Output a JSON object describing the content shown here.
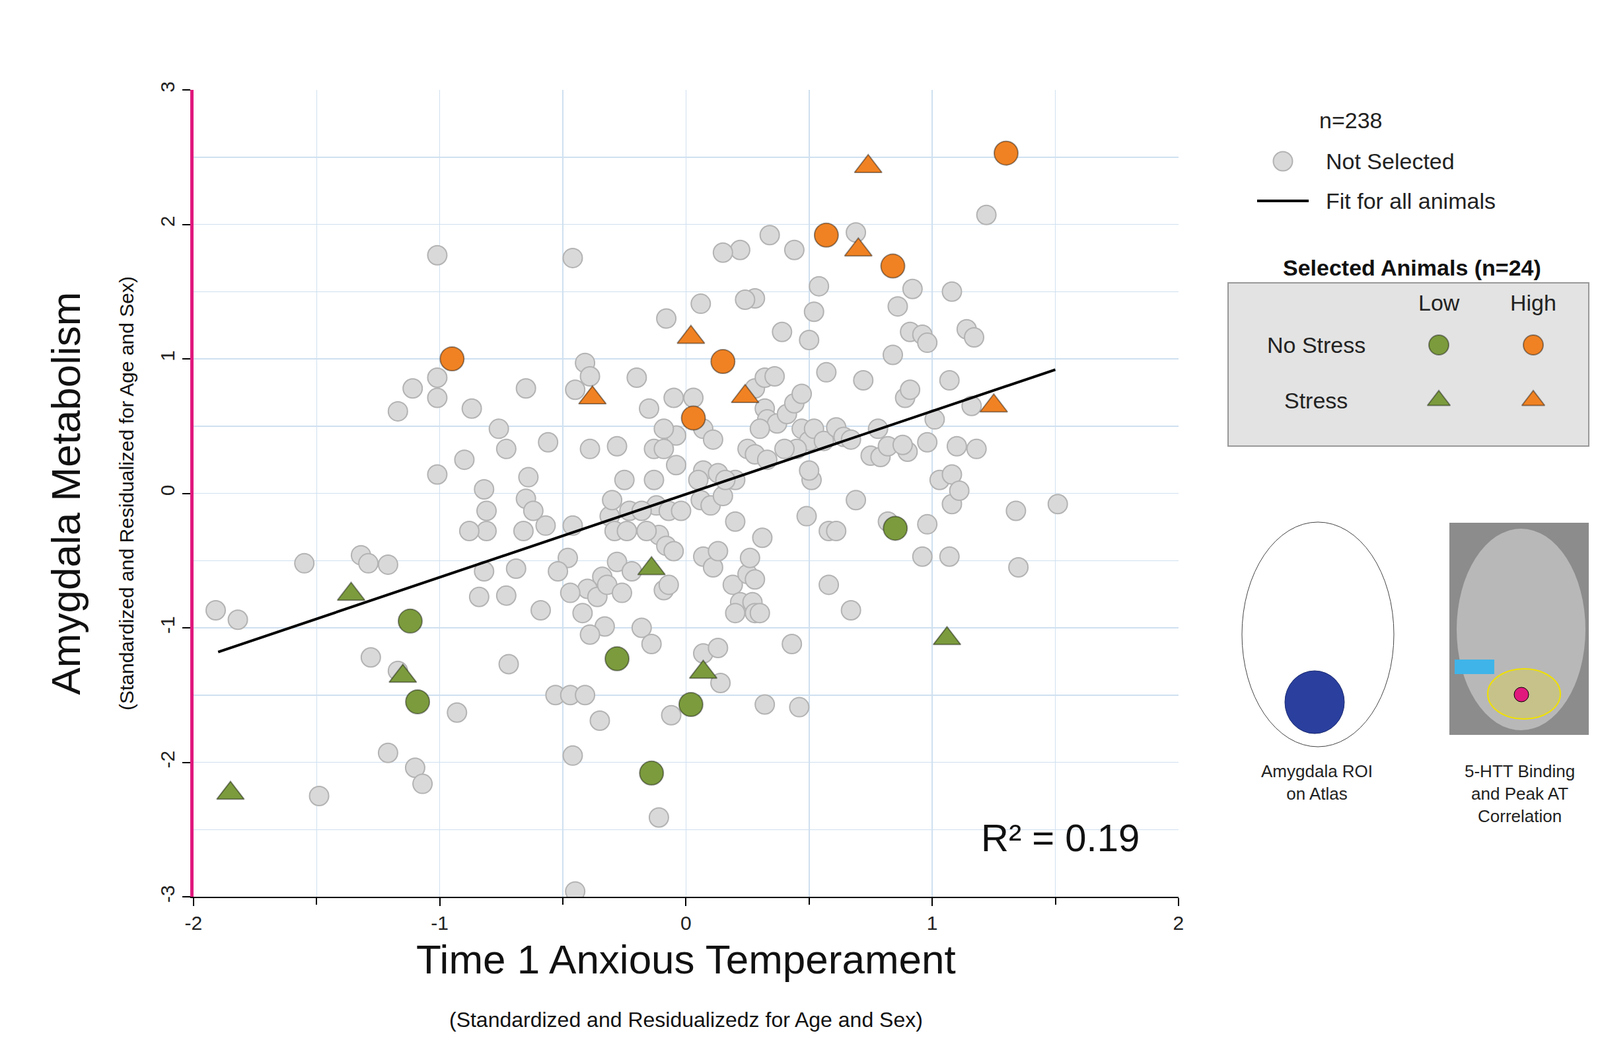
{
  "chart_data": {
    "type": "scatter",
    "xlabel": "Time 1 Anxious Temperament",
    "xlabel_sub": "(Standardized and Residualizedz for Age and Sex)",
    "ylabel": "Amygdala Metabolism",
    "ylabel_sub": "(Standardized and Residualized for Age and Sex)",
    "xlim": [
      -2,
      2
    ],
    "ylim": [
      -3,
      3
    ],
    "xticks": [
      -2,
      -1,
      0,
      1,
      2
    ],
    "yticks": [
      -3,
      -2,
      -1,
      0,
      1,
      2,
      3
    ],
    "grid": true,
    "annotations": [
      "R² = 0.19"
    ],
    "legend_title": "n=238",
    "series": [
      {
        "name": "Not Selected",
        "color": "#d9d9d9",
        "marker": "circle",
        "x": [
          -1.91,
          -1.82,
          -1.55,
          -1.49,
          -1.32,
          -1.29,
          -1.21,
          -1.28,
          -1.17,
          -1.21,
          -1.1,
          -1.07,
          -1.17,
          -1.11,
          -1.01,
          -1.01,
          -1.01,
          -1.01,
          -0.9,
          -0.87,
          -0.82,
          -0.81,
          -0.81,
          -0.82,
          -0.76,
          -0.73,
          -0.69,
          -0.72,
          -0.84,
          -0.73,
          -0.65,
          -0.64,
          -0.65,
          -0.59,
          -0.57,
          -0.56,
          -0.48,
          -0.46,
          -0.46,
          -0.45,
          -0.41,
          -0.39,
          -0.52,
          -0.39,
          -0.34,
          -0.4,
          -0.42,
          -0.36,
          -0.32,
          -0.33,
          -0.39,
          -0.31,
          -0.3,
          -0.29,
          -0.28,
          -0.28,
          -0.25,
          -0.23,
          -0.2,
          -0.15,
          -0.13,
          -0.13,
          -0.12,
          -0.11,
          -0.08,
          -0.07,
          -0.05,
          -0.02,
          -0.18,
          -0.16,
          -0.18,
          -0.14,
          -0.11,
          -0.09,
          -0.07,
          -0.04,
          0.07,
          0.05,
          0.06,
          0.1,
          0.15,
          0.2,
          0.2,
          0.13,
          0.16,
          0.07,
          0.11,
          0.07,
          0.14,
          0.19,
          0.22,
          0.25,
          0.27,
          0.28,
          0.26,
          0.28,
          0.13,
          0.25,
          0.28,
          0.28,
          0.24,
          0.22,
          0.15,
          0.06,
          -0.08,
          -0.04,
          0.28,
          0.32,
          0.36,
          0.32,
          0.33,
          0.37,
          0.41,
          0.44,
          0.47,
          0.5,
          0.52,
          0.56,
          0.61,
          0.64,
          0.67,
          0.52,
          0.5,
          0.54,
          0.57,
          0.44,
          0.34,
          0.47,
          0.51,
          0.45,
          0.39,
          0.31,
          0.32,
          0.43,
          0.46,
          0.58,
          0.67,
          0.72,
          0.75,
          0.79,
          0.82,
          0.84,
          0.86,
          0.89,
          0.9,
          0.91,
          0.92,
          0.91,
          0.96,
          0.98,
          0.98,
          1.01,
          1.03,
          1.08,
          1.07,
          1.08,
          1.08,
          1.1,
          1.14,
          1.17,
          1.16,
          1.18,
          1.22,
          1.34,
          1.35,
          1.51,
          0.96,
          0.98,
          0.82,
          0.69,
          0.49,
          0.5,
          0.13,
          0.78,
          0.88,
          0.3,
          0.33,
          0.4,
          0.58,
          0.69,
          0.2,
          0.3,
          -0.09,
          -0.09,
          0.03,
          0.07,
          0.11,
          -0.05,
          -0.24,
          -0.22,
          -0.26,
          -0.47,
          -0.53,
          -0.47,
          -0.41,
          -0.35,
          -0.46,
          -0.06,
          0.61,
          1.07,
          1.11,
          -0.45,
          -0.93,
          -0.88,
          -0.66,
          -0.62
        ],
        "y": [
          -0.87,
          -0.94,
          -0.52,
          -2.25,
          -0.46,
          -0.52,
          -0.53,
          -1.22,
          -1.32,
          -1.93,
          -2.04,
          -2.16,
          0.61,
          0.78,
          0.86,
          0.71,
          1.77,
          0.14,
          0.25,
          0.63,
          0.03,
          -0.13,
          -0.28,
          -0.58,
          0.48,
          0.33,
          -0.56,
          -1.27,
          -0.77,
          -0.76,
          0.78,
          0.12,
          -0.04,
          -0.87,
          -0.24,
          0.38,
          -0.48,
          -0.24,
          1.75,
          0.77,
          0.97,
          0.87,
          -0.58,
          0.33,
          -0.62,
          -0.71,
          -0.89,
          -0.77,
          -0.68,
          -0.99,
          -1.05,
          -0.17,
          -0.05,
          -0.28,
          -0.51,
          0.35,
          0.1,
          -0.13,
          0.86,
          0.63,
          0.33,
          0.1,
          -0.09,
          -0.31,
          -0.39,
          -0.13,
          -0.43,
          -0.13,
          -0.13,
          -0.28,
          -1.0,
          -1.12,
          -2.41,
          -0.72,
          -0.68,
          0.21,
          0.17,
          0.1,
          -0.05,
          -0.09,
          -0.02,
          -0.21,
          0.1,
          0.15,
          0.1,
          -0.47,
          -0.55,
          -1.19,
          -1.41,
          -0.68,
          -0.81,
          -0.6,
          -0.81,
          -0.89,
          -0.48,
          -0.64,
          -1.15,
          0.33,
          0.29,
          1.45,
          1.44,
          1.81,
          1.79,
          1.41,
          1.3,
          0.43,
          0.78,
          0.86,
          0.87,
          0.63,
          0.55,
          0.52,
          0.59,
          0.67,
          0.48,
          0.39,
          0.48,
          0.39,
          0.49,
          0.42,
          0.4,
          1.35,
          1.14,
          1.54,
          0.9,
          1.81,
          1.92,
          0.74,
          0.1,
          0.33,
          1.2,
          -0.33,
          -1.57,
          -1.12,
          -1.59,
          -0.68,
          -0.87,
          0.84,
          0.28,
          0.27,
          0.35,
          1.03,
          1.39,
          0.71,
          0.31,
          1.2,
          1.52,
          0.77,
          1.18,
          1.12,
          0.38,
          0.55,
          0.1,
          1.5,
          0.84,
          0.14,
          -0.08,
          0.35,
          1.22,
          1.16,
          0.65,
          0.33,
          2.07,
          -0.13,
          -0.55,
          -0.08,
          -0.47,
          -0.23,
          -0.21,
          -0.05,
          -0.17,
          0.17,
          -0.43,
          0.48,
          0.36,
          0.48,
          0.25,
          0.33,
          -0.28,
          1.94,
          -0.89,
          -0.89,
          0.33,
          0.48,
          0.71,
          0.48,
          0.4,
          0.71,
          -0.28,
          -0.58,
          -0.74,
          -0.74,
          -1.5,
          -1.5,
          -1.5,
          -1.69,
          -1.95,
          -1.65,
          -0.28,
          -0.47,
          0.02,
          -2.96,
          -1.63,
          -0.28,
          -0.28,
          -0.13
        ]
      },
      {
        "name": "Fit for all animals",
        "type": "line",
        "color": "#000000",
        "x": [
          -1.9,
          1.5
        ],
        "y": [
          -1.18,
          0.92
        ]
      },
      {
        "row": "No Stress",
        "column": "Low",
        "color": "#7b9b3d",
        "marker": "circle",
        "x": [
          -1.12,
          -1.09,
          -0.28,
          0.02,
          -0.14,
          0.85
        ],
        "y": [
          -0.95,
          -1.55,
          -1.23,
          -1.57,
          -2.08,
          -0.26
        ]
      },
      {
        "row": "No Stress",
        "column": "High",
        "color": "#f08223",
        "marker": "circle",
        "x": [
          -0.95,
          0.03,
          0.15,
          0.57,
          0.84,
          1.3
        ],
        "y": [
          1.0,
          0.56,
          0.98,
          1.92,
          1.69,
          2.53
        ]
      },
      {
        "row": "Stress",
        "column": "Low",
        "color": "#7b9b3d",
        "marker": "triangle",
        "x": [
          -1.85,
          -1.36,
          -1.15,
          -0.14,
          0.07,
          1.06
        ],
        "y": [
          -2.23,
          -0.75,
          -1.36,
          -0.56,
          -1.33,
          -1.08
        ]
      },
      {
        "row": "Stress",
        "column": "High",
        "color": "#f08223",
        "marker": "triangle",
        "x": [
          -0.38,
          0.02,
          0.24,
          0.7,
          0.74,
          1.25
        ],
        "y": [
          0.71,
          1.16,
          0.72,
          1.81,
          2.43,
          0.65
        ]
      }
    ],
    "selected_legend": {
      "title": "Selected Animals (n=24)",
      "columns": [
        "Low",
        "High"
      ],
      "rows": [
        "No Stress",
        "Stress"
      ]
    },
    "image_captions": [
      "Amygdala ROI on Atlas",
      "5-HTT Binding and Peak AT Correlation"
    ]
  }
}
